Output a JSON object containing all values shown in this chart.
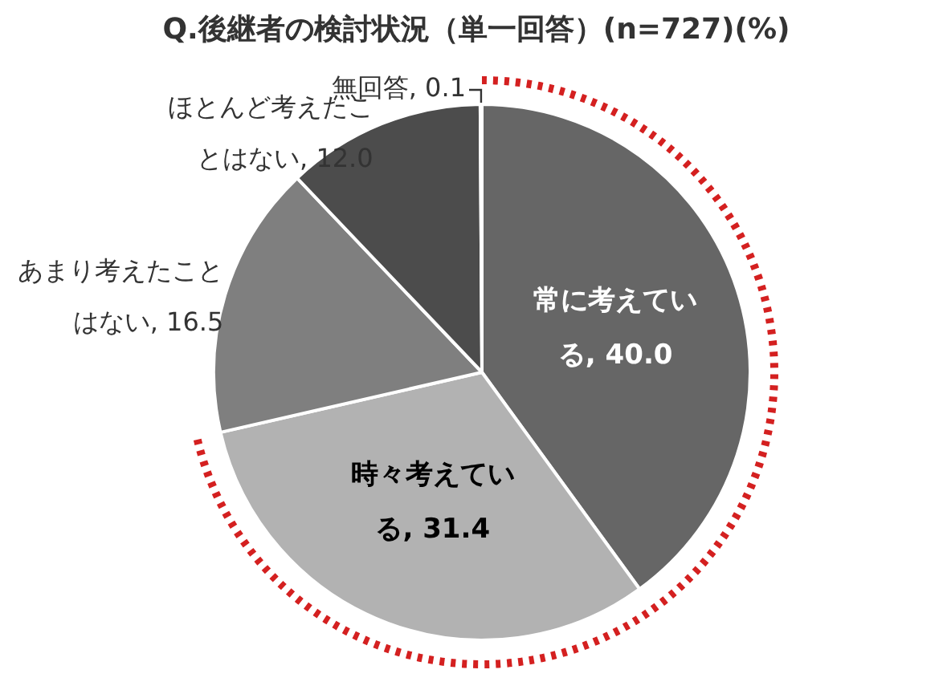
{
  "chart_data": {
    "type": "pie",
    "title": "Q.後継者の検討状況（単一回答）(n=727)(%)",
    "categories": [
      "常に考えている",
      "時々考えている",
      "あまり考えたことはない",
      "ほとんど考えたことはない",
      "無回答"
    ],
    "values": [
      40.0,
      31.4,
      16.5,
      12.0,
      0.1
    ],
    "value_labels": [
      "40.0",
      "31.4",
      "16.5",
      "12.0",
      "0.1"
    ],
    "colors": [
      "#666666",
      "#b2b2b2",
      "#7f7f7f",
      "#4c4c4c",
      "#333333"
    ],
    "legend": false
  }
}
